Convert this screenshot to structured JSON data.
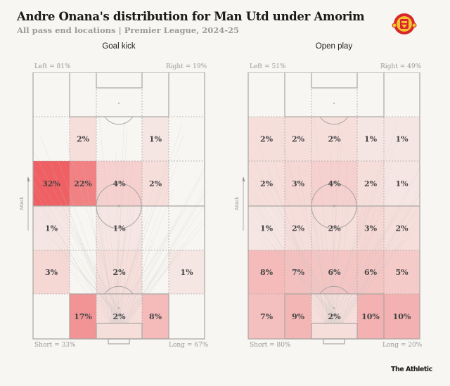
{
  "header": {
    "title": "Andre Onana's distribution for Man Utd under Amorim",
    "subtitle": "All pass end locations | Premier League, 2024-25",
    "logo": "manchester-united-crest",
    "brand": "The Athletic"
  },
  "colors": {
    "background": "#f7f6f2",
    "line": "#a8a6a2",
    "heat_low": "#f7f3ef",
    "heat_high": "#ef5f63",
    "text": "#444444"
  },
  "axis_label": "Attack",
  "chart_data": [
    {
      "type": "heatmap",
      "title": "Goal kick",
      "left_label": "Left = 81%",
      "right_label": "Right = 19%",
      "short_label": "Short = 33%",
      "long_label": "Long = 67%",
      "unit": "%",
      "rows": [
        [
          null,
          null,
          null,
          null,
          null
        ],
        [
          null,
          2,
          null,
          1,
          null
        ],
        [
          32,
          22,
          4,
          2,
          null
        ],
        [
          1,
          null,
          1,
          null,
          null
        ],
        [
          3,
          null,
          2,
          null,
          1
        ],
        [
          null,
          17,
          2,
          8,
          null
        ]
      ]
    },
    {
      "type": "heatmap",
      "title": "Open play",
      "left_label": "Left = 51%",
      "right_label": "Right = 49%",
      "short_label": "Short = 80%",
      "long_label": "Long = 20%",
      "unit": "%",
      "rows": [
        [
          null,
          null,
          null,
          null,
          null
        ],
        [
          2,
          2,
          2,
          1,
          1
        ],
        [
          2,
          3,
          4,
          2,
          1
        ],
        [
          1,
          2,
          2,
          3,
          2
        ],
        [
          8,
          7,
          6,
          6,
          5
        ],
        [
          7,
          9,
          2,
          10,
          10
        ]
      ]
    }
  ]
}
